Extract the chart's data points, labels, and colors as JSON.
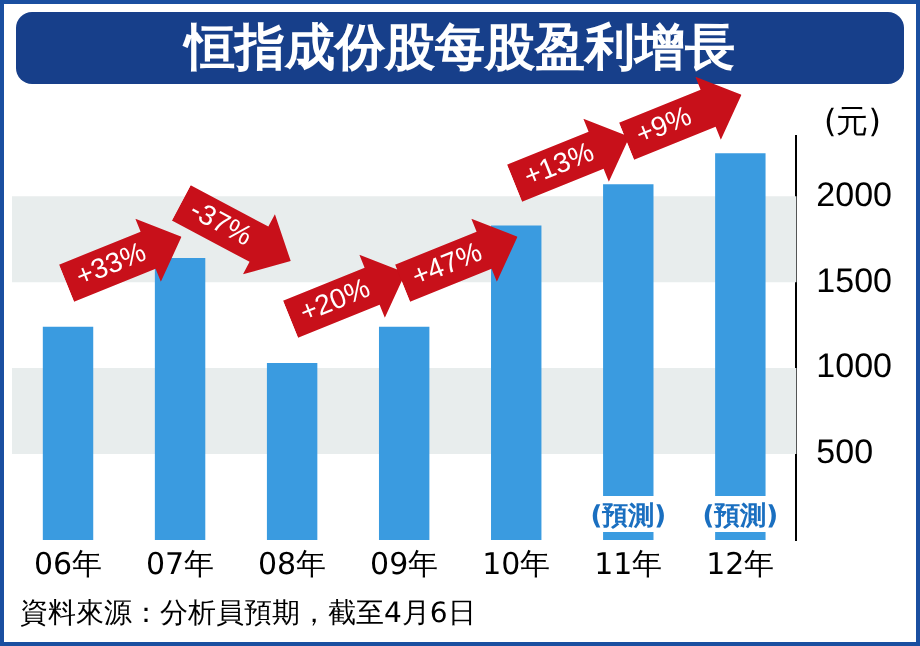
{
  "chart_data": {
    "type": "bar",
    "title": "恒指成份股每股盈利增長",
    "ylabel": "(元)",
    "categories": [
      "06年",
      "07年",
      "08年",
      "09年",
      "10年",
      "11年",
      "12年"
    ],
    "values": [
      1240,
      1640,
      1030,
      1240,
      1830,
      2070,
      2250
    ],
    "color": "#3a9be0",
    "ylim": [
      0,
      2350
    ],
    "yticks": [
      500,
      1000,
      1500,
      2000
    ],
    "bands": [
      {
        "axis": "y",
        "from": 500,
        "to": 1000,
        "color": "#e8eded"
      },
      {
        "axis": "y",
        "from": 1500,
        "to": 2000,
        "color": "#e8eded"
      }
    ],
    "annotations": [
      "+33%",
      "-37%",
      "+20%",
      "+47%",
      "+13%",
      "+9%",
      {
        "text": "(預測)",
        "x": "11年",
        "y": 0
      },
      {
        "text": "(預測)",
        "x": "12年",
        "y": 0
      },
      "資料來源：分析員預期，截至4月6日"
    ],
    "grid": false,
    "legend": false
  }
}
